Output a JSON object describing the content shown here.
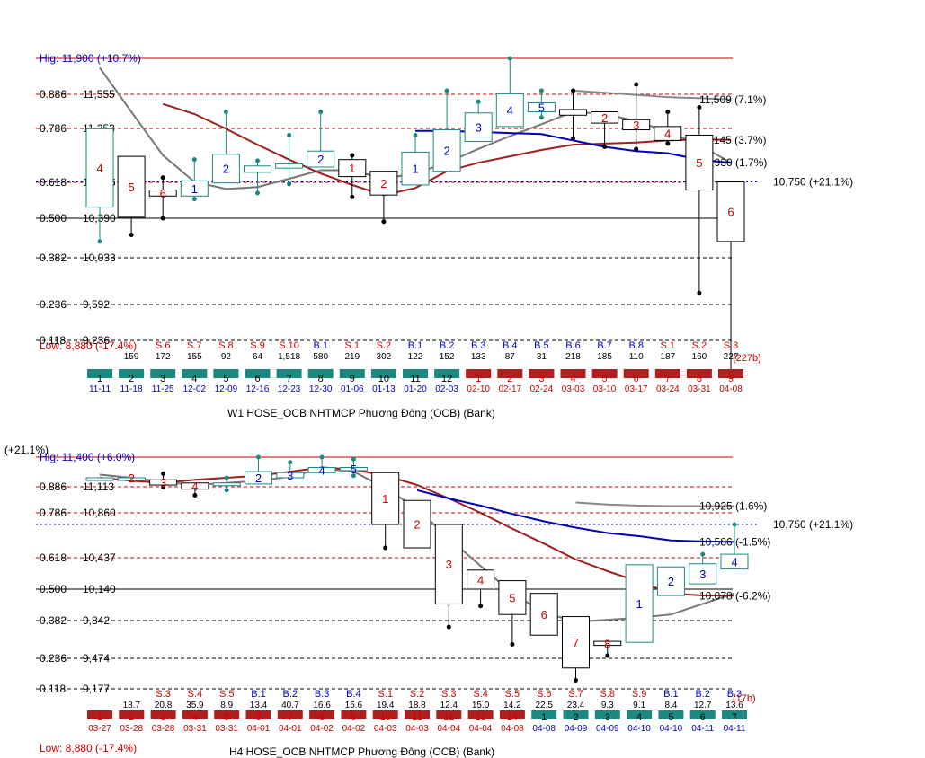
{
  "chart_data": [
    {
      "type": "candlestick",
      "title": "W1    HOSE_OCB NHTMCP Phương Đông (OCB) (Bank)",
      "high_label": "Hig: 11,900 (+10.7%)",
      "low_label": "Low: 8,880 (-17.4%)",
      "fib_levels": [
        {
          "ratio": "0.886",
          "price": "11,555",
          "y": 11555
        },
        {
          "ratio": "0.786",
          "price": "11,253",
          "y": 11253
        },
        {
          "ratio": "0.618",
          "price": "10,746",
          "y": 10746
        },
        {
          "ratio": "0.500",
          "price": "10,390",
          "y": 10390
        },
        {
          "ratio": "0.382",
          "price": "10,033",
          "y": 10033
        },
        {
          "ratio": "0.236",
          "price": "9,592",
          "y": 9592
        },
        {
          "ratio": "0.118",
          "price": "9,236",
          "y": 9236
        }
      ],
      "high": 11900,
      "current_line": {
        "label": "10,750 (+21.1%)",
        "y": 10750
      },
      "right_labels": [
        {
          "text": "11,509 (7.1%)",
          "y": 11509
        },
        {
          "text": "11,145 (3.7%)",
          "y": 11145
        },
        {
          "text": "10,930 (1.7%)",
          "y": 10930
        }
      ],
      "ylim": [
        9140,
        12000
      ],
      "candles": [
        {
          "o": 10500,
          "c": 11250,
          "h": 11250,
          "l": 10180,
          "num": "4",
          "color": "#cc0000",
          "sess": "",
          "vol": "",
          "vcolor": "#cc0000",
          "cnt": "1",
          "date": "11-11",
          "bg": "#1a8a80"
        },
        {
          "o": 10990,
          "c": 10400,
          "h": 10990,
          "l": 10240,
          "num": "5",
          "color": "#cc0000",
          "sess": "",
          "vol": "159",
          "vcolor": "#000",
          "cnt": "2",
          "date": "11-18",
          "bg": "#1a8a80"
        },
        {
          "o": 10670,
          "c": 10610,
          "h": 10790,
          "l": 10390,
          "num": "6",
          "color": "#cc0000",
          "sess": "S.6",
          "vol": "172",
          "vcolor": "#000",
          "cnt": "3",
          "date": "11-25",
          "bg": "#1a8a80"
        },
        {
          "o": 10610,
          "c": 10760,
          "h": 10960,
          "l": 10580,
          "num": "1",
          "color": "#0000cc",
          "sess": "S.7",
          "vol": "155",
          "vcolor": "#000",
          "cnt": "4",
          "date": "12-02",
          "bg": "#1a8a80"
        },
        {
          "o": 10740,
          "c": 11010,
          "h": 11400,
          "l": 10740,
          "num": "2",
          "color": "#0000cc",
          "sess": "S.8",
          "vol": "92",
          "vcolor": "#000",
          "cnt": "5",
          "date": "12-09",
          "bg": "#1a8a80"
        },
        {
          "o": 10840,
          "c": 10900,
          "h": 10950,
          "l": 10640,
          "num": "",
          "color": "#000",
          "sess": "S.9",
          "vol": "64",
          "vcolor": "#000",
          "cnt": "6",
          "date": "12-16",
          "bg": "#1a8a80"
        },
        {
          "o": 10880,
          "c": 10920,
          "h": 11190,
          "l": 10730,
          "num": "",
          "color": "#000",
          "sess": "S.10",
          "vol": "1,518",
          "vcolor": "#000",
          "cnt": "7",
          "date": "12-23",
          "bg": "#1a8a80"
        },
        {
          "o": 10890,
          "c": 11040,
          "h": 11400,
          "l": 10890,
          "num": "2",
          "color": "#0000cc",
          "sess": "B.1",
          "vol": "580",
          "vcolor": "#000",
          "cnt": "8",
          "date": "12-30",
          "bg": "#1a8a80"
        },
        {
          "o": 10960,
          "c": 10800,
          "h": 11000,
          "l": 10600,
          "num": "1",
          "color": "#cc0000",
          "sess": "S.1",
          "vol": "219",
          "vcolor": "#000",
          "cnt": "9",
          "date": "01-06",
          "bg": "#1a8a80"
        },
        {
          "o": 10850,
          "c": 10620,
          "h": 10850,
          "l": 10360,
          "num": "2",
          "color": "#cc0000",
          "sess": "S.2",
          "vol": "302",
          "vcolor": "#000",
          "cnt": "10",
          "date": "01-13",
          "bg": "#1a8a80"
        },
        {
          "o": 10720,
          "c": 11030,
          "h": 11190,
          "l": 10720,
          "num": "1",
          "color": "#0000cc",
          "sess": "B.1",
          "vol": "122",
          "vcolor": "#000",
          "cnt": "11",
          "date": "01-20",
          "bg": "#1a8a80"
        },
        {
          "o": 10850,
          "c": 11240,
          "h": 11590,
          "l": 10850,
          "num": "2",
          "color": "#0000cc",
          "sess": "B.2",
          "vol": "152",
          "vcolor": "#000",
          "cnt": "12",
          "date": "02-03",
          "bg": "#1a8a80"
        },
        {
          "o": 11130,
          "c": 11390,
          "h": 11490,
          "l": 11130,
          "num": "3",
          "color": "#0000cc",
          "sess": "B.3",
          "vol": "133",
          "vcolor": "#000",
          "cnt": "1",
          "date": "02-10",
          "bg": "#b01e1e"
        },
        {
          "o": 11270,
          "c": 11560,
          "h": 11900,
          "l": 11270,
          "num": "4",
          "color": "#0000cc",
          "sess": "B.4",
          "vol": "87",
          "vcolor": "#000",
          "cnt": "2",
          "date": "02-17",
          "bg": "#b01e1e"
        },
        {
          "o": 11400,
          "c": 11480,
          "h": 11590,
          "l": 11350,
          "num": "5",
          "color": "#0000cc",
          "sess": "B.5",
          "vol": "31",
          "vcolor": "#000",
          "cnt": "3",
          "date": "02-24",
          "bg": "#b01e1e"
        },
        {
          "o": 11420,
          "c": 11370,
          "h": 11590,
          "l": 11160,
          "num": "",
          "color": "#000",
          "sess": "B.6",
          "vol": "218",
          "vcolor": "#000",
          "cnt": "4",
          "date": "03-03",
          "bg": "#b01e1e"
        },
        {
          "o": 11400,
          "c": 11300,
          "h": 11400,
          "l": 11080,
          "num": "2",
          "color": "#cc0000",
          "sess": "B.7",
          "vol": "185",
          "vcolor": "#000",
          "cnt": "5",
          "date": "03-10",
          "bg": "#b01e1e"
        },
        {
          "o": 11330,
          "c": 11240,
          "h": 11650,
          "l": 11060,
          "num": "3",
          "color": "#cc0000",
          "sess": "B.8",
          "vol": "110",
          "vcolor": "#000",
          "cnt": "6",
          "date": "03-17",
          "bg": "#b01e1e"
        },
        {
          "o": 11270,
          "c": 11140,
          "h": 11400,
          "l": 11110,
          "num": "4",
          "color": "#cc0000",
          "sess": "S.1",
          "vol": "187",
          "vcolor": "#000",
          "cnt": "7",
          "date": "03-24",
          "bg": "#b01e1e"
        },
        {
          "o": 11190,
          "c": 10670,
          "h": 11440,
          "l": 9700,
          "num": "5",
          "color": "#cc0000",
          "sess": "S.2",
          "vol": "160",
          "vcolor": "#000",
          "cnt": "8",
          "date": "03-31",
          "bg": "#b01e1e"
        },
        {
          "o": 10750,
          "c": 10180,
          "h": 10750,
          "l": 8880,
          "num": "6",
          "color": "#cc0000",
          "sess": "S.3",
          "vol": "227",
          "vcolor": "#000",
          "cnt": "9",
          "date": "04-08",
          "bg": "#b01e1e"
        }
      ],
      "vol_note": "(227b)",
      "ma_red": [
        null,
        null,
        11470,
        11380,
        11250,
        11100,
        10960,
        10830,
        10720,
        10620,
        10690,
        10850,
        10930,
        10990,
        11050,
        11100,
        11110,
        11120,
        11140,
        11150,
        11145
      ],
      "ma_gray": [
        11810,
        11400,
        11000,
        10750,
        10680,
        10700,
        10780,
        10860,
        10860,
        10780,
        10830,
        10930,
        11060,
        11180,
        11290,
        11400,
        11380,
        11320,
        11220,
        11100,
        10930
      ],
      "ma_blue": [
        null,
        null,
        null,
        null,
        null,
        null,
        null,
        null,
        null,
        null,
        11230,
        11230,
        11220,
        11210,
        11200,
        11140,
        11080,
        11040,
        11020,
        10960,
        10930
      ],
      "ma_gray_flat": [
        null,
        null,
        null,
        null,
        null,
        null,
        null,
        null,
        null,
        null,
        null,
        null,
        null,
        null,
        null,
        11590,
        11570,
        11550,
        11530,
        11520,
        11509
      ]
    },
    {
      "type": "candlestick",
      "title": "H4    HOSE_OCB NHTMCP Phương Đông (OCB) (Bank)",
      "high_label": "Hig: 11,400 (+6.0%)",
      "low_label": "Low: 8,880 (-17.4%)",
      "left_cut_label": "(+21.1%)",
      "fib_levels": [
        {
          "ratio": "0.886",
          "price": "11,113",
          "y": 11113
        },
        {
          "ratio": "0.786",
          "price": "10,860",
          "y": 10860
        },
        {
          "ratio": "0.618",
          "price": "10,437",
          "y": 10437
        },
        {
          "ratio": "0.500",
          "price": "10,140",
          "y": 10140
        },
        {
          "ratio": "0.382",
          "price": "9,842",
          "y": 9842
        },
        {
          "ratio": "0.236",
          "price": "9,474",
          "y": 9474
        },
        {
          "ratio": "0.118",
          "price": "9,177",
          "y": 9177
        }
      ],
      "high": 11400,
      "current_line": {
        "label": "10,750 (+21.1%)",
        "y": 10750
      },
      "right_labels": [
        {
          "text": "10,925 (1.6%)",
          "y": 10925
        },
        {
          "text": "10,586 (-1.5%)",
          "y": 10586
        },
        {
          "text": "10,078 (-6.2%)",
          "y": 10078
        }
      ],
      "ylim": [
        9100,
        11560
      ],
      "candles": [
        {
          "o": 11200,
          "c": 11200,
          "h": 11200,
          "l": 11200,
          "num": "",
          "color": "#000",
          "sess": "",
          "vol": "",
          "vcolor": "#000",
          "cnt": "1",
          "date": "03-27",
          "bg": "#b01e1e"
        },
        {
          "o": 11200,
          "c": 11200,
          "h": 11200,
          "l": 11200,
          "num": "2",
          "color": "#cc0000",
          "sess": "",
          "vol": "18.7",
          "vcolor": "#000",
          "cnt": "2",
          "date": "03-28",
          "bg": "#b01e1e"
        },
        {
          "o": 11180,
          "c": 11130,
          "h": 11240,
          "l": 11110,
          "num": "3",
          "color": "#cc0000",
          "sess": "S.3",
          "vol": "20.8",
          "vcolor": "#000",
          "cnt": "3",
          "date": "03-28",
          "bg": "#b01e1e"
        },
        {
          "o": 11150,
          "c": 11090,
          "h": 11150,
          "l": 11030,
          "num": "4",
          "color": "#cc0000",
          "sess": "S.4",
          "vol": "35.9",
          "vcolor": "#000",
          "cnt": "4",
          "date": "03-31",
          "bg": "#b01e1e"
        },
        {
          "o": 11150,
          "c": 11150,
          "h": 11200,
          "l": 11080,
          "num": "",
          "color": "#000",
          "sess": "S.5",
          "vol": "8.9",
          "vcolor": "#000",
          "cnt": "5",
          "date": "03-31",
          "bg": "#b01e1e"
        },
        {
          "o": 11140,
          "c": 11260,
          "h": 11400,
          "l": 11140,
          "num": "2",
          "color": "#0000cc",
          "sess": "B.1",
          "vol": "13.4",
          "vcolor": "#000",
          "cnt": "6",
          "date": "04-01",
          "bg": "#b01e1e"
        },
        {
          "o": 11200,
          "c": 11250,
          "h": 11350,
          "l": 11200,
          "num": "3",
          "color": "#0000cc",
          "sess": "B.2",
          "vol": "40.7",
          "vcolor": "#000",
          "cnt": "7",
          "date": "04-01",
          "bg": "#b01e1e"
        },
        {
          "o": 11250,
          "c": 11300,
          "h": 11400,
          "l": 11250,
          "num": "4",
          "color": "#0000cc",
          "sess": "B.3",
          "vol": "16.6",
          "vcolor": "#000",
          "cnt": "8",
          "date": "04-02",
          "bg": "#b01e1e"
        },
        {
          "o": 11270,
          "c": 11300,
          "h": 11380,
          "l": 11220,
          "num": "5",
          "color": "#0000cc",
          "sess": "B.4",
          "vol": "15.6",
          "vcolor": "#000",
          "cnt": "9",
          "date": "04-02",
          "bg": "#b01e1e"
        },
        {
          "o": 11250,
          "c": 10750,
          "h": 11250,
          "l": 10530,
          "num": "1",
          "color": "#cc0000",
          "sess": "S.1",
          "vol": "19.4",
          "vcolor": "#000",
          "cnt": "10",
          "date": "04-03",
          "bg": "#b01e1e"
        },
        {
          "o": 10980,
          "c": 10530,
          "h": 10980,
          "l": 10530,
          "num": "2",
          "color": "#cc0000",
          "sess": "S.2",
          "vol": "18.8",
          "vcolor": "#000",
          "cnt": "11",
          "date": "04-03",
          "bg": "#b01e1e"
        },
        {
          "o": 10750,
          "c": 10000,
          "h": 10750,
          "l": 9780,
          "num": "3",
          "color": "#cc0000",
          "sess": "S.3",
          "vol": "12.4",
          "vcolor": "#000",
          "cnt": "12",
          "date": "04-04",
          "bg": "#b01e1e"
        },
        {
          "o": 10320,
          "c": 10140,
          "h": 10320,
          "l": 9980,
          "num": "4",
          "color": "#cc0000",
          "sess": "S.4",
          "vol": "15.0",
          "vcolor": "#000",
          "cnt": "13",
          "date": "04-04",
          "bg": "#b01e1e"
        },
        {
          "o": 10220,
          "c": 9900,
          "h": 10220,
          "l": 9610,
          "num": "5",
          "color": "#cc0000",
          "sess": "S.5",
          "vol": "14.2",
          "vcolor": "#000",
          "cnt": "14",
          "date": "04-08",
          "bg": "#b01e1e"
        },
        {
          "o": 10100,
          "c": 9700,
          "h": 10100,
          "l": 9700,
          "num": "6",
          "color": "#cc0000",
          "sess": "S.6",
          "vol": "22.5",
          "vcolor": "#000",
          "cnt": "1",
          "date": "04-08",
          "bg": "#1a8a80"
        },
        {
          "o": 9880,
          "c": 9380,
          "h": 9880,
          "l": 9260,
          "num": "7",
          "color": "#cc0000",
          "sess": "S.7",
          "vol": "23.4",
          "vcolor": "#000",
          "cnt": "2",
          "date": "04-09",
          "bg": "#1a8a80"
        },
        {
          "o": 9640,
          "c": 9600,
          "h": 9640,
          "l": 9500,
          "num": "8",
          "color": "#cc0000",
          "sess": "S.8",
          "vol": "9.3",
          "vcolor": "#000",
          "cnt": "3",
          "date": "04-09",
          "bg": "#1a8a80"
        },
        {
          "o": 9630,
          "c": 10370,
          "h": 10370,
          "l": 9630,
          "num": "1",
          "color": "#0000cc",
          "sess": "S.9",
          "vol": "9.1",
          "vcolor": "#000",
          "cnt": "4",
          "date": "04-10",
          "bg": "#1a8a80"
        },
        {
          "o": 10080,
          "c": 10350,
          "h": 10350,
          "l": 10080,
          "num": "2",
          "color": "#0000cc",
          "sess": "B.1",
          "vol": "8.4",
          "vcolor": "#000",
          "cnt": "5",
          "date": "04-10",
          "bg": "#1a8a80"
        },
        {
          "o": 10190,
          "c": 10380,
          "h": 10470,
          "l": 10190,
          "num": "3",
          "color": "#0000cc",
          "sess": "B.2",
          "vol": "12.7",
          "vcolor": "#000",
          "cnt": "6",
          "date": "04-11",
          "bg": "#1a8a80"
        },
        {
          "o": 10330,
          "c": 10470,
          "h": 10750,
          "l": 10330,
          "num": "4",
          "color": "#0000cc",
          "sess": "B.3",
          "vol": "13.6",
          "vcolor": "#000",
          "cnt": "7",
          "date": "04-11",
          "bg": "#1a8a80"
        }
      ],
      "vol_note": "(17b)",
      "ma_red": [
        11200,
        11170,
        11150,
        11180,
        11200,
        11220,
        11260,
        11300,
        11280,
        11220,
        11130,
        11000,
        10860,
        10710,
        10570,
        10420,
        10310,
        10210,
        10100,
        10080,
        10078
      ],
      "ma_gray": [
        11230,
        11200,
        11160,
        11130,
        11150,
        11170,
        11210,
        11290,
        11260,
        11100,
        10900,
        10620,
        10360,
        10100,
        9920,
        9830,
        9850,
        9870,
        9900,
        10000,
        10100
      ],
      "ma_blue": [
        null,
        null,
        null,
        null,
        null,
        null,
        null,
        null,
        null,
        null,
        11080,
        11000,
        10930,
        10850,
        10780,
        10720,
        10670,
        10640,
        10600,
        10590,
        10586
      ],
      "ma_gray_flat": [
        null,
        null,
        null,
        null,
        null,
        null,
        null,
        null,
        null,
        null,
        null,
        null,
        null,
        null,
        null,
        10960,
        10940,
        10930,
        10925,
        10925,
        10925
      ]
    }
  ]
}
